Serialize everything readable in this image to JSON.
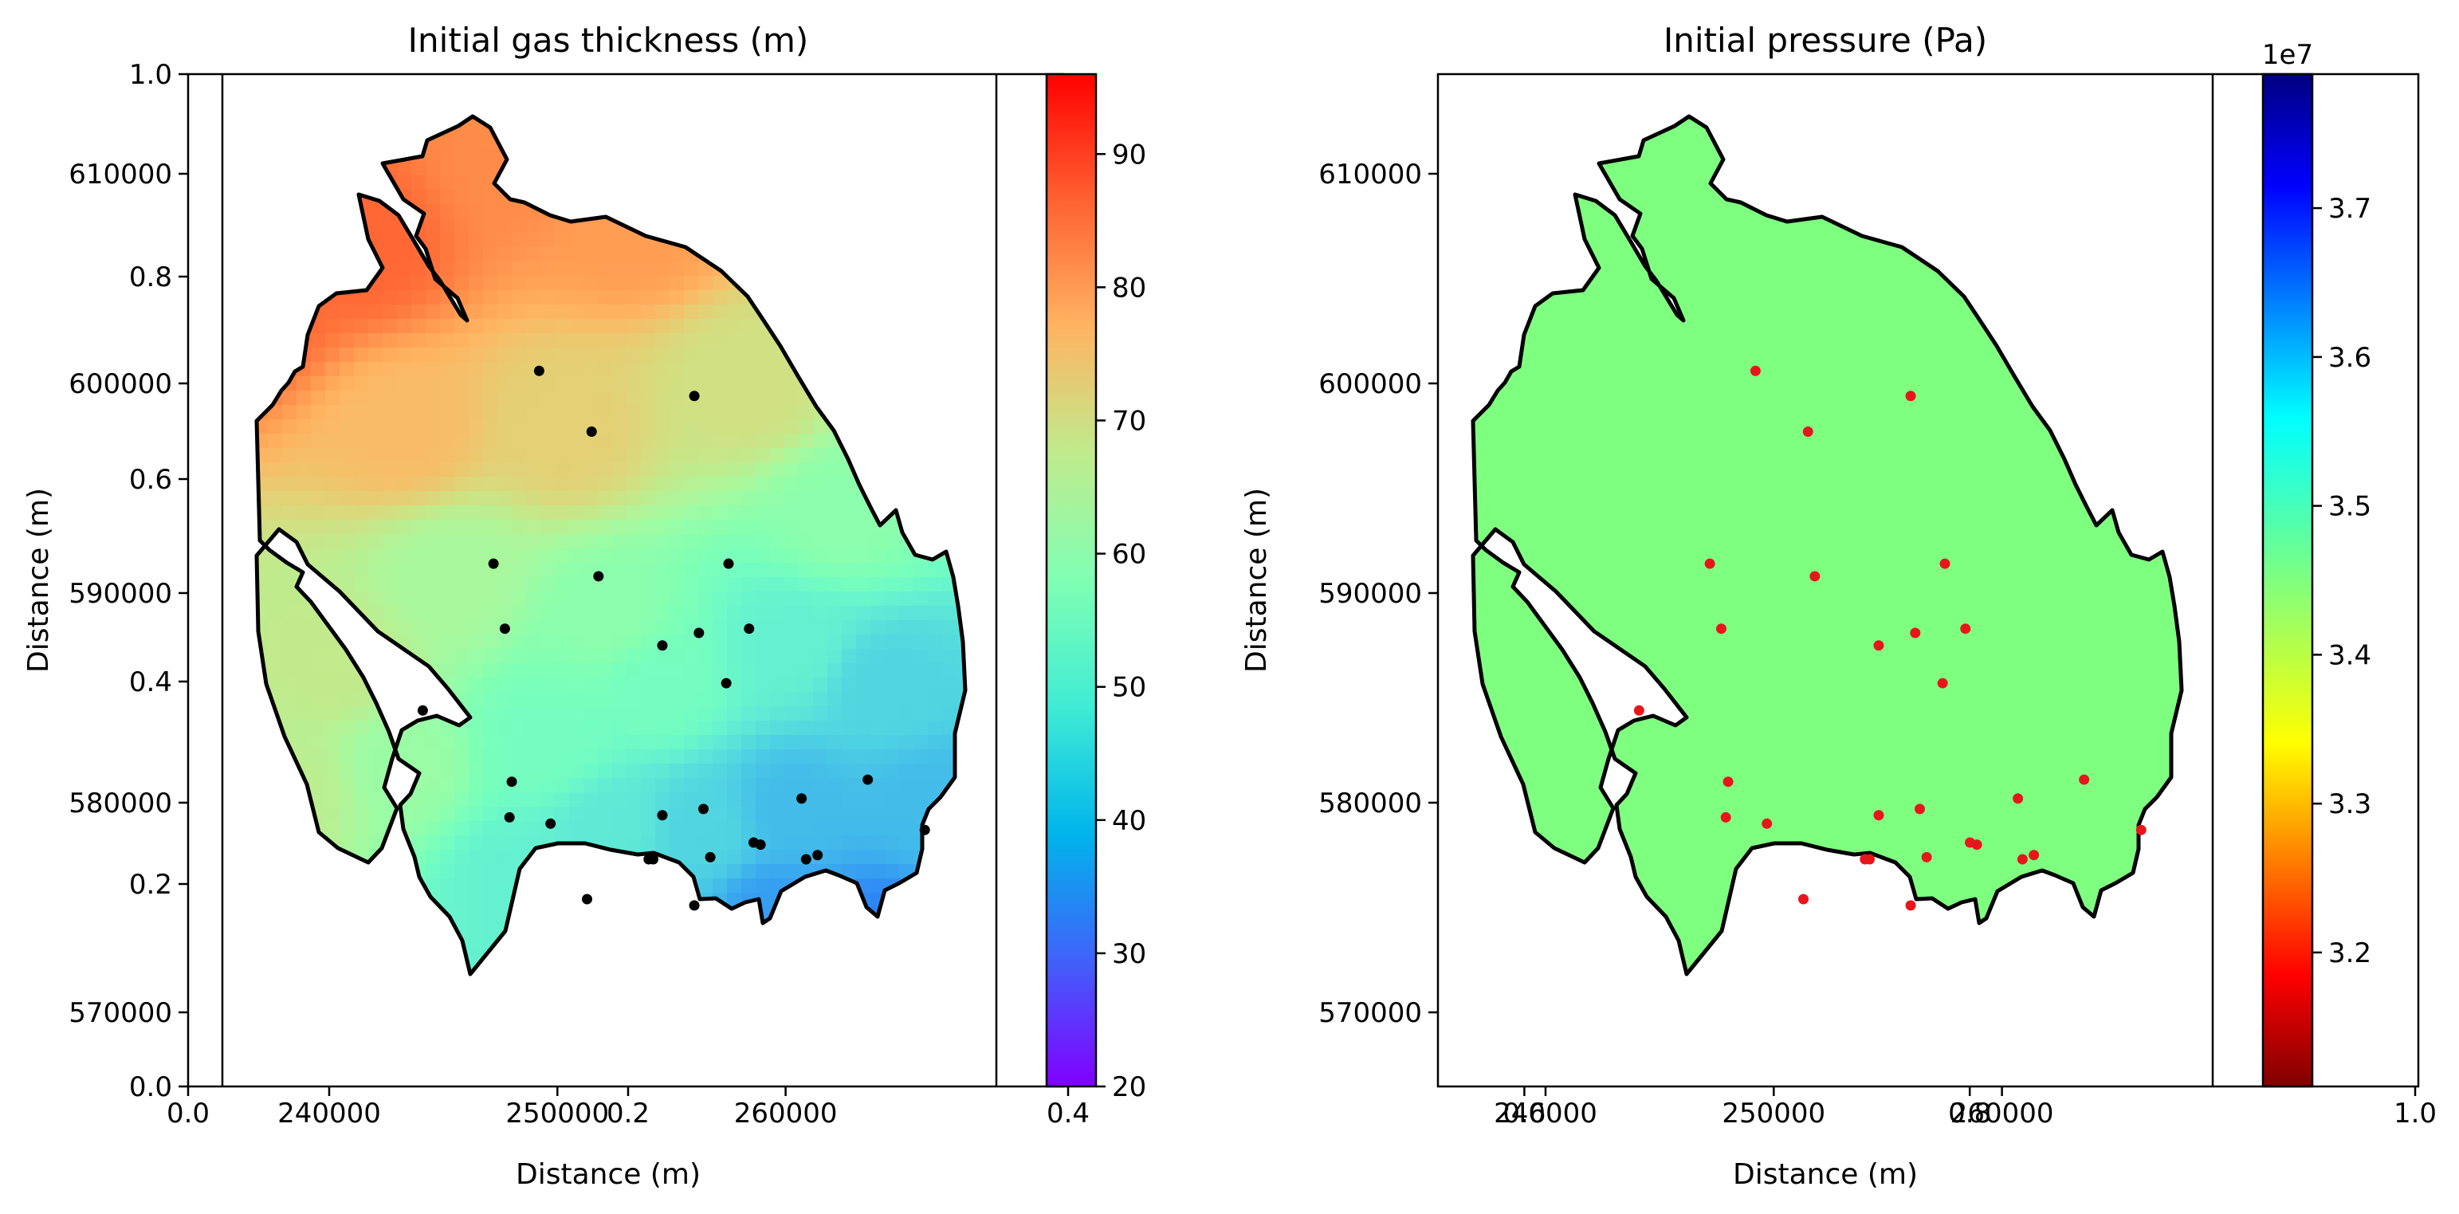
{
  "chart_data": [
    {
      "type": "heatmap",
      "title": "Initial gas thickness (m)",
      "xlabel": "Distance (m)",
      "ylabel": "Distance (m)",
      "x_ticks": [
        "240000",
        "250000",
        "260000"
      ],
      "y_ticks": [
        "570000",
        "580000",
        "590000",
        "600000",
        "610000"
      ],
      "overlay_x_ticks": [
        "0.0",
        "0.2",
        "0.4"
      ],
      "overlay_y_ticks": [
        "0.0",
        "0.2",
        "0.4",
        "0.6",
        "0.8",
        "1.0"
      ],
      "colorbar": {
        "min": 20,
        "max": 96,
        "ticks": [
          "20",
          "30",
          "40",
          "50",
          "60",
          "70",
          "80",
          "90"
        ],
        "colormap": "rainbow"
      },
      "well_color": "#000000",
      "wells": [
        [
          249.2,
          600.6
        ],
        [
          251.5,
          597.7
        ],
        [
          256.0,
          599.4
        ],
        [
          247.2,
          591.4
        ],
        [
          251.8,
          590.8
        ],
        [
          247.7,
          588.3
        ],
        [
          254.6,
          587.5
        ],
        [
          256.2,
          588.1
        ],
        [
          257.5,
          591.4
        ],
        [
          258.4,
          588.3
        ],
        [
          257.4,
          585.7
        ],
        [
          244.1,
          584.4
        ],
        [
          248.0,
          581.0
        ],
        [
          247.9,
          579.3
        ],
        [
          249.7,
          579.0
        ],
        [
          254.6,
          579.4
        ],
        [
          256.4,
          579.7
        ],
        [
          254.0,
          577.3
        ],
        [
          254.2,
          577.3
        ],
        [
          256.7,
          577.4
        ],
        [
          258.6,
          578.1
        ],
        [
          258.9,
          578.0
        ],
        [
          260.7,
          580.2
        ],
        [
          260.9,
          577.3
        ],
        [
          261.4,
          577.5
        ],
        [
          263.6,
          581.1
        ],
        [
          266.1,
          578.7
        ],
        [
          251.3,
          575.4
        ],
        [
          256.0,
          575.1
        ]
      ]
    },
    {
      "type": "heatmap",
      "title": "Initial pressure (Pa)",
      "xlabel": "Distance (m)",
      "ylabel": "Distance (m)",
      "x_ticks": [
        "240000",
        "250000",
        "260000"
      ],
      "y_ticks": [
        "570000",
        "580000",
        "590000",
        "600000",
        "610000"
      ],
      "overlay_x_ticks": [
        "0.6",
        "0.8",
        "1.0"
      ],
      "colorbar": {
        "min": 3.11,
        "max": 3.79,
        "ticks": [
          "3.2",
          "3.3",
          "3.4",
          "3.5",
          "3.6",
          "3.7"
        ],
        "offset_label": "1e7",
        "colormap": "jet_r"
      },
      "field_value": 3.45,
      "well_color": "#e8161b",
      "wells": [
        [
          249.2,
          600.6
        ],
        [
          251.5,
          597.7
        ],
        [
          256.0,
          599.4
        ],
        [
          247.2,
          591.4
        ],
        [
          251.8,
          590.8
        ],
        [
          247.7,
          588.3
        ],
        [
          254.6,
          587.5
        ],
        [
          256.2,
          588.1
        ],
        [
          257.5,
          591.4
        ],
        [
          258.4,
          588.3
        ],
        [
          257.4,
          585.7
        ],
        [
          244.1,
          584.4
        ],
        [
          248.0,
          581.0
        ],
        [
          247.9,
          579.3
        ],
        [
          249.7,
          579.0
        ],
        [
          254.6,
          579.4
        ],
        [
          256.4,
          579.7
        ],
        [
          254.0,
          577.3
        ],
        [
          254.2,
          577.3
        ],
        [
          256.7,
          577.4
        ],
        [
          258.6,
          578.1
        ],
        [
          258.9,
          578.0
        ],
        [
          260.7,
          580.2
        ],
        [
          260.9,
          577.3
        ],
        [
          261.4,
          577.5
        ],
        [
          263.6,
          581.1
        ],
        [
          266.1,
          578.7
        ],
        [
          251.3,
          575.4
        ],
        [
          256.0,
          575.1
        ]
      ]
    }
  ],
  "colors": {
    "outline": "#000000",
    "frame": "#000000"
  },
  "thickness_control": [
    [
      236.0,
      604.0,
      86
    ],
    [
      241.0,
      607.0,
      86
    ],
    [
      248.0,
      611.0,
      82
    ],
    [
      253.0,
      608.0,
      80
    ],
    [
      243.0,
      598.0,
      76
    ],
    [
      250.0,
      598.0,
      73
    ],
    [
      258.0,
      600.0,
      70
    ],
    [
      262.0,
      594.0,
      60
    ],
    [
      245.0,
      591.0,
      64
    ],
    [
      252.0,
      589.0,
      60
    ],
    [
      240.0,
      587.0,
      68
    ],
    [
      243.0,
      582.0,
      62
    ],
    [
      249.0,
      583.0,
      55
    ],
    [
      254.0,
      586.0,
      55
    ],
    [
      260.0,
      588.0,
      50
    ],
    [
      264.0,
      586.0,
      44
    ],
    [
      252.0,
      579.0,
      48
    ],
    [
      256.0,
      579.0,
      44
    ],
    [
      260.0,
      580.0,
      40
    ],
    [
      266.0,
      580.0,
      40
    ],
    [
      248.0,
      577.0,
      50
    ],
    [
      254.0,
      575.0,
      42
    ],
    [
      259.0,
      575.0,
      36
    ],
    [
      264.0,
      574.0,
      33
    ],
    [
      261.0,
      572.0,
      33
    ],
    [
      238.0,
      581.0,
      67
    ]
  ]
}
